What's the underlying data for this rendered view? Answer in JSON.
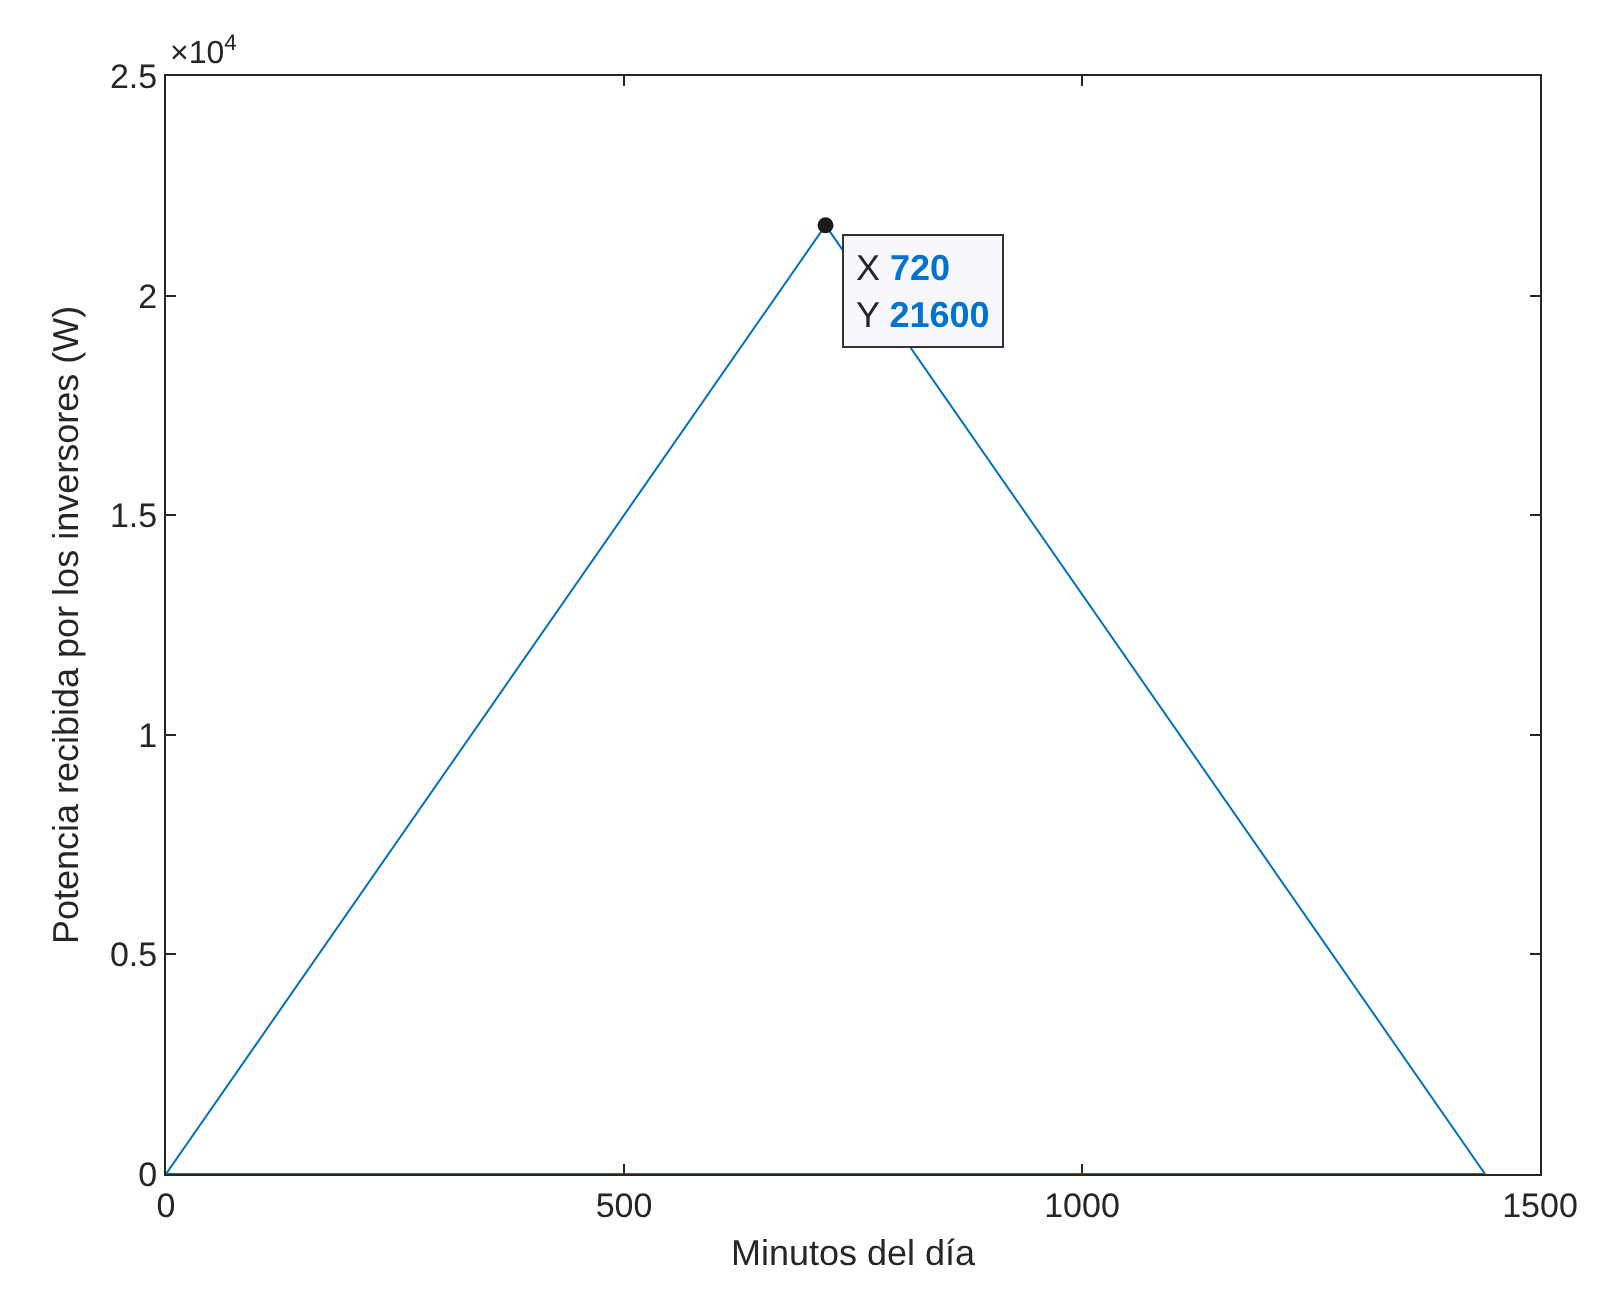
{
  "chart_data": {
    "type": "line",
    "xlabel": "Minutos del día",
    "ylabel": "Potencia recibida por los inversores (W)",
    "x": [
      0,
      720,
      1440
    ],
    "series": [
      {
        "color": "#0072bd",
        "values": [
          0,
          2.16,
          0
        ]
      },
      {
        "color": "#0072bd",
        "x": [
          0,
          1440
        ],
        "values": [
          0,
          0
        ]
      }
    ],
    "xlim": [
      0,
      1500
    ],
    "xticks": [
      0,
      500,
      1000,
      1500
    ],
    "ylim": [
      0,
      2.5
    ],
    "yticks": [
      0,
      0.5,
      1,
      1.5,
      2,
      2.5
    ],
    "annotations": [
      "×10$^{4}$",
      {
        "text": "X 720\nY 21600",
        "x": 720,
        "y": 2.16
      }
    ],
    "marker": "none",
    "line_style": "solid"
  }
}
